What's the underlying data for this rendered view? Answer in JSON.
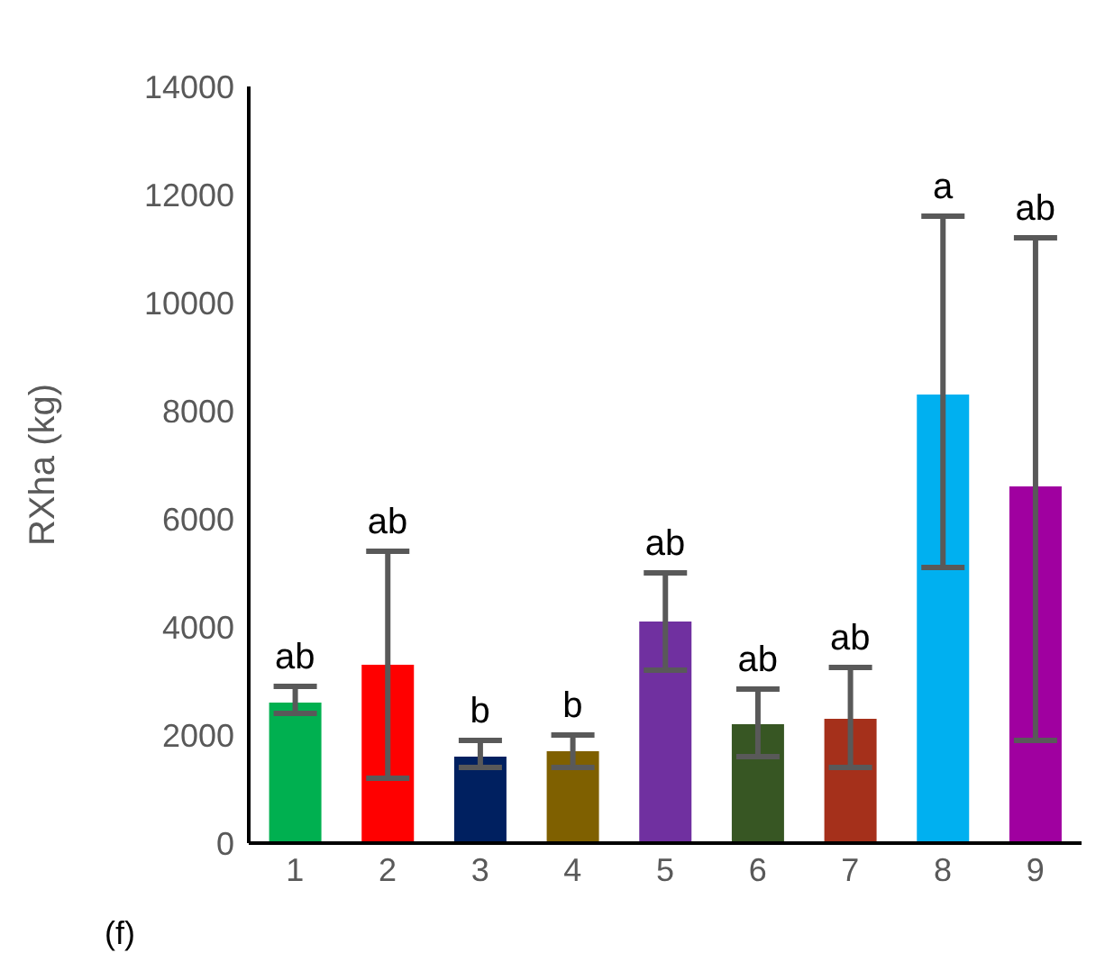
{
  "chart_data": {
    "type": "bar",
    "ylabel": "RXha (kg)",
    "categories": [
      "1",
      "2",
      "3",
      "4",
      "5",
      "6",
      "7",
      "8",
      "9"
    ],
    "values": [
      2600,
      3300,
      1600,
      1700,
      4100,
      2200,
      2300,
      8300,
      6600
    ],
    "colors": [
      "#00b050",
      "#ff0000",
      "#002060",
      "#7f6000",
      "#7030a0",
      "#375623",
      "#a5301b",
      "#00b0f0",
      "#a000a0"
    ],
    "errors": [
      [
        2400,
        2900
      ],
      [
        1200,
        5400
      ],
      [
        1400,
        1900
      ],
      [
        1400,
        2000
      ],
      [
        3200,
        5000
      ],
      [
        1600,
        2850
      ],
      [
        1400,
        3250
      ],
      [
        5100,
        11600
      ],
      [
        1900,
        11200
      ]
    ],
    "ylim": [
      0,
      14000
    ],
    "yticks": [
      0,
      2000,
      4000,
      6000,
      8000,
      10000,
      12000,
      14000
    ],
    "annotations": [
      {
        "text": "ab",
        "x": "1",
        "y": 2900
      },
      {
        "text": "ab",
        "x": "2",
        "y": 5400
      },
      {
        "text": "b",
        "x": "3",
        "y": 1900
      },
      {
        "text": "b",
        "x": "4",
        "y": 2000
      },
      {
        "text": "ab",
        "x": "5",
        "y": 5000
      },
      {
        "text": "ab",
        "x": "6",
        "y": 2850
      },
      {
        "text": "ab",
        "x": "7",
        "y": 3250
      },
      {
        "text": "a",
        "x": "8",
        "y": 11600
      },
      {
        "text": "ab",
        "x": "9",
        "y": 11200
      },
      "(f)"
    ]
  }
}
